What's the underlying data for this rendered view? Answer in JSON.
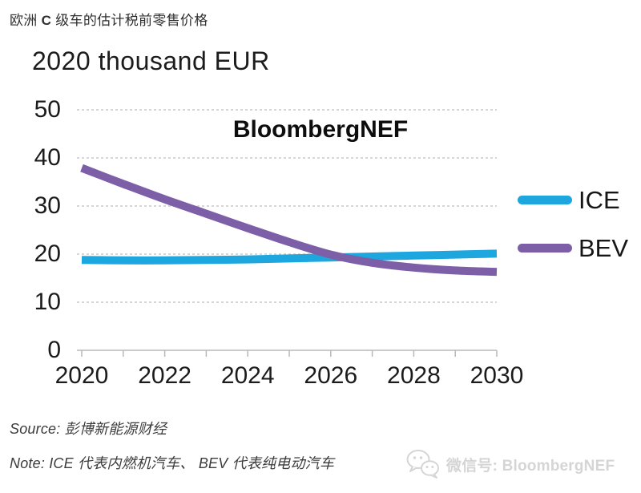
{
  "page": {
    "title": {
      "prefix": "欧洲 ",
      "bold": "C",
      "suffix": " 级车的估计税前零售价格"
    }
  },
  "chart": {
    "title": "2020 thousand EUR",
    "watermark": "BloombergNEF"
  },
  "chart_data": {
    "type": "line",
    "title": "2020 thousand EUR",
    "x": [
      2020,
      2021,
      2022,
      2023,
      2024,
      2025,
      2026,
      2027,
      2028,
      2029,
      2030
    ],
    "x_tick_labels": [
      "2020",
      "2022",
      "2024",
      "2026",
      "2028",
      "2030"
    ],
    "y_ticks": [
      0,
      10,
      20,
      30,
      40,
      50
    ],
    "ylim": [
      0,
      50
    ],
    "grid": "horizontal dashed, solid baseline at 0, year ticks below axis",
    "legend_position": "right",
    "series": [
      {
        "name": "ICE",
        "color": "#1EA7DF",
        "values": [
          18.8,
          18.7,
          18.7,
          18.8,
          18.9,
          19.1,
          19.3,
          19.5,
          19.7,
          19.9,
          20.1
        ]
      },
      {
        "name": "BEV",
        "color": "#7D5FA8",
        "values": [
          37.9,
          34.6,
          31.4,
          28.4,
          25.4,
          22.5,
          19.9,
          18.2,
          17.2,
          16.6,
          16.3
        ]
      }
    ]
  },
  "footer": {
    "source": "Source: 彭博新能源财经",
    "note": "Note: ICE 代表内燃机汽车、 BEV 代表纯电动汽车",
    "wechat": "微信号: BloombergNEF"
  },
  "colors": {
    "ice": "#1EA7DF",
    "bev": "#7D5FA8",
    "gridline": "#C9C9C9",
    "axis": "#B8B8B8",
    "wechat_gray": "#D5D5D5"
  }
}
